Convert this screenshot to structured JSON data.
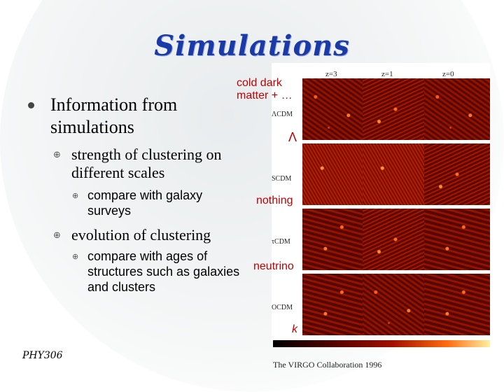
{
  "title": "Simulations",
  "bullets": {
    "main": "Information from simulations",
    "sub1": "strength of clustering on different scales",
    "sub1_item": "compare with galaxy surveys",
    "sub2": "evolution of clustering",
    "sub2_item": "compare with ages of structures such as galaxies and clusters"
  },
  "markers": {
    "level1": "●",
    "level2": "⊕",
    "level3": "⊕"
  },
  "annotations": {
    "cdm": "cold dark matter + …",
    "lambda": "Λ",
    "nothing": "nothing",
    "neutrino": "neutrino",
    "k": "k"
  },
  "figure": {
    "z_labels": [
      "z=3",
      "z=1",
      "z=0"
    ],
    "models": [
      "ΛCDM",
      "SCDM",
      "τCDM",
      "OCDM"
    ],
    "credit": "The VIRGO Collaboration 1996"
  },
  "footer": "PHY306",
  "colors": {
    "title": "#1a3aa8",
    "annotation": "#c00000"
  }
}
